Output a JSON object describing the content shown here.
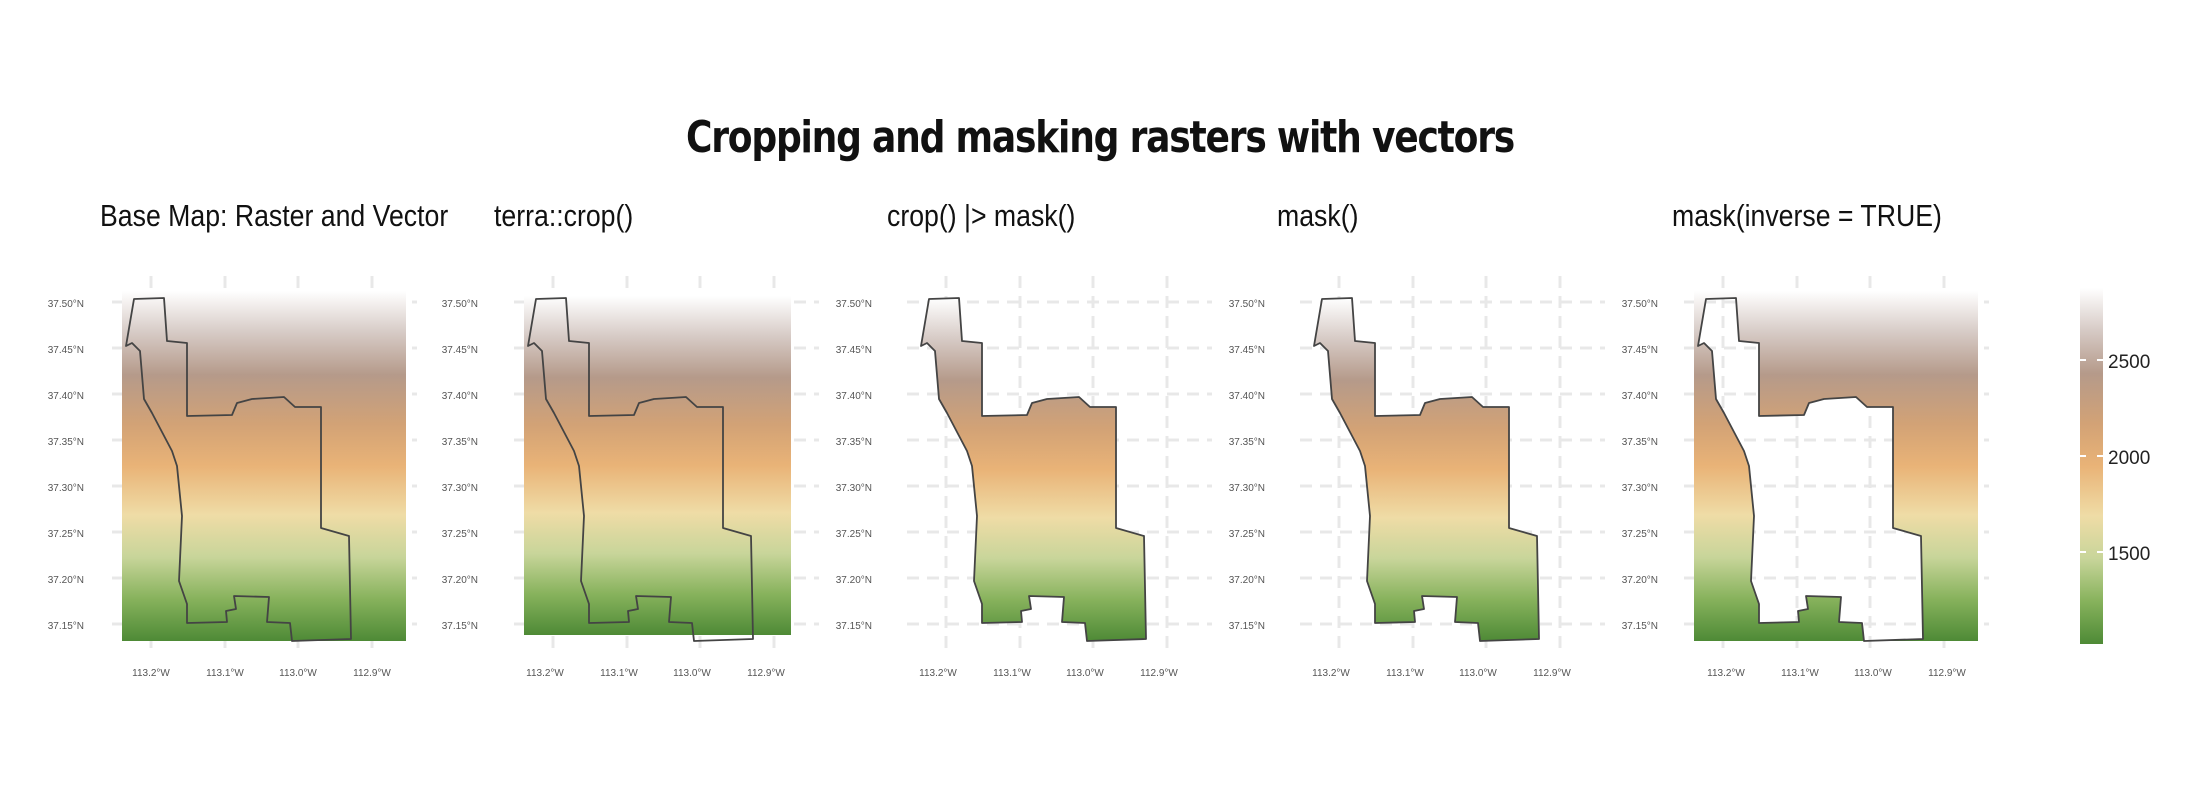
{
  "title": "Cropping and masking rasters with vectors",
  "panels": [
    {
      "label": "Base Map: Raster and Vector",
      "mode": "base"
    },
    {
      "label": "terra::crop()",
      "mode": "crop"
    },
    {
      "label": "crop() |> mask()",
      "mode": "cropmask"
    },
    {
      "label": "mask()",
      "mode": "mask"
    },
    {
      "label": "mask(inverse = TRUE)",
      "mode": "inverse"
    }
  ],
  "lat_ticks": [
    "37.50°N",
    "37.45°N",
    "37.40°N",
    "37.35°N",
    "37.30°N",
    "37.25°N",
    "37.20°N",
    "37.15°N"
  ],
  "lon_ticks": [
    "113.2°W",
    "113.1°W",
    "113.0°W",
    "112.9°W"
  ],
  "legend": {
    "ticks": [
      "2500",
      "2000",
      "1500"
    ],
    "colors": [
      "#4e8a36",
      "#87b25c",
      "#c8d59a",
      "#efdca6",
      "#e9b377",
      "#d2a276",
      "#b59a8a",
      "#d6cac5",
      "#ffffff"
    ]
  },
  "colors": {
    "outline": "#444444",
    "grid": "#e8e8e8",
    "tick_text": "#555555"
  }
}
